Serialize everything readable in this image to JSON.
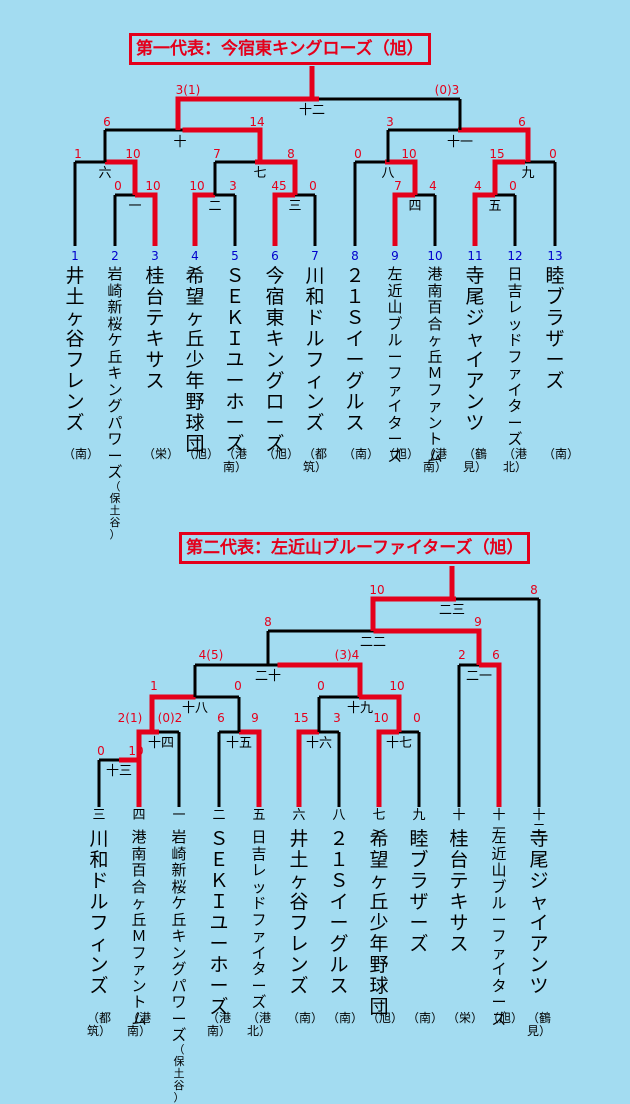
{
  "banner1": "第一代表：今宿東キングローズ（旭）",
  "banner2": "第二代表：左近山ブルーファイターズ（旭）",
  "bracket1": {
    "teams": [
      {
        "seed": "1",
        "name": "井土ヶ谷フレンズ",
        "area": "（南）"
      },
      {
        "seed": "2",
        "name": "岩崎新桜ケ丘キングパワーズ",
        "suffix": "（保土谷）",
        "area": ""
      },
      {
        "seed": "3",
        "name": "桂台テキサス",
        "area": "（栄）"
      },
      {
        "seed": "4",
        "name": "希望ヶ丘少年野球団",
        "area": "（旭）"
      },
      {
        "seed": "5",
        "name": "ＳＥＫＩユーホーズ",
        "area": "（港南）"
      },
      {
        "seed": "6",
        "name": "今宿東キングローズ",
        "area": "（旭）"
      },
      {
        "seed": "7",
        "name": "川和ドルフィンズ",
        "area": "（都筑）"
      },
      {
        "seed": "8",
        "name": "２１Ｓイーグルス",
        "area": "（南）"
      },
      {
        "seed": "9",
        "name": "左近山ブルーファイターズ",
        "area": "（旭）"
      },
      {
        "seed": "10",
        "name": "港南百合ヶ丘Ｍファントム",
        "area": "（港南）"
      },
      {
        "seed": "11",
        "name": "寺尾ジャイアンツ",
        "area": "（鶴見）"
      },
      {
        "seed": "12",
        "name": "日吉レッドファイターズ",
        "area": "（港北）"
      },
      {
        "seed": "13",
        "name": "睦ブラザーズ",
        "area": "（南）"
      }
    ],
    "matches": [
      "一",
      "二",
      "三",
      "四",
      "五",
      "六",
      "七",
      "八",
      "九",
      "十",
      "十一",
      "十二"
    ],
    "scores": {
      "m1a": "0",
      "m1b": "10",
      "m2a": "10",
      "m2b": "3",
      "m3a": "45",
      "m3b": "0",
      "m4a": "7",
      "m4b": "4",
      "m5a": "4",
      "m5b": "0",
      "m6a": "1",
      "m6b": "10",
      "m7a": "7",
      "m7b": "8",
      "m8a": "0",
      "m8b": "10",
      "m9a": "15",
      "m9b": "0",
      "m10a": "6",
      "m10b": "14",
      "m11a": "3",
      "m11b": "6",
      "m12a": "3(1)",
      "m12b": "(0)3"
    }
  },
  "bracket2": {
    "teams": [
      {
        "seed": "三",
        "name": "川和ドルフィンズ",
        "area": "（都筑）"
      },
      {
        "seed": "四",
        "name": "港南百合ヶ丘Ｍファントム",
        "area": "（港南）"
      },
      {
        "seed": "一",
        "name": "岩崎新桜ケ丘キングパワーズ",
        "suffix": "（保土谷）",
        "area": ""
      },
      {
        "seed": "二",
        "name": "ＳＥＫＩユーホーズ",
        "area": "（港南）"
      },
      {
        "seed": "五",
        "name": "日吉レッドファイターズ",
        "area": "（港北）"
      },
      {
        "seed": "六",
        "name": "井土ヶ谷フレンズ",
        "area": "（南）"
      },
      {
        "seed": "八",
        "name": "２１Ｓイーグルス",
        "area": "（南）"
      },
      {
        "seed": "七",
        "name": "希望ヶ丘少年野球団",
        "area": "（旭）"
      },
      {
        "seed": "九",
        "name": "睦ブラザーズ",
        "area": "（南）"
      },
      {
        "seed": "十",
        "name": "桂台テキサス",
        "area": "（栄）"
      },
      {
        "seed": "十一",
        "name": "左近山ブルーファイターズ",
        "area": "（旭）"
      },
      {
        "seed": "十二",
        "name": "寺尾ジャイアンツ",
        "area": "（鶴見）"
      }
    ],
    "matches": [
      "十三",
      "十四",
      "十五",
      "十六",
      "十七",
      "十八",
      "十九",
      "二十",
      "二一",
      "二二",
      "二三"
    ],
    "scores": {
      "m13a": "0",
      "m13b": "10",
      "m14a": "2(1)",
      "m14b": "(0)2",
      "m15a": "6",
      "m15b": "9",
      "m16a": "15",
      "m16b": "3",
      "m17a": "10",
      "m17b": "0",
      "m18a": "1",
      "m18b": "0",
      "m19a": "0",
      "m19b": "10",
      "m20a": "4(5)",
      "m20b": "(3)4",
      "m21a": "2",
      "m21b": "6",
      "m22a": "8",
      "m22b": "9",
      "m23a": "10",
      "m23b": "8"
    }
  }
}
